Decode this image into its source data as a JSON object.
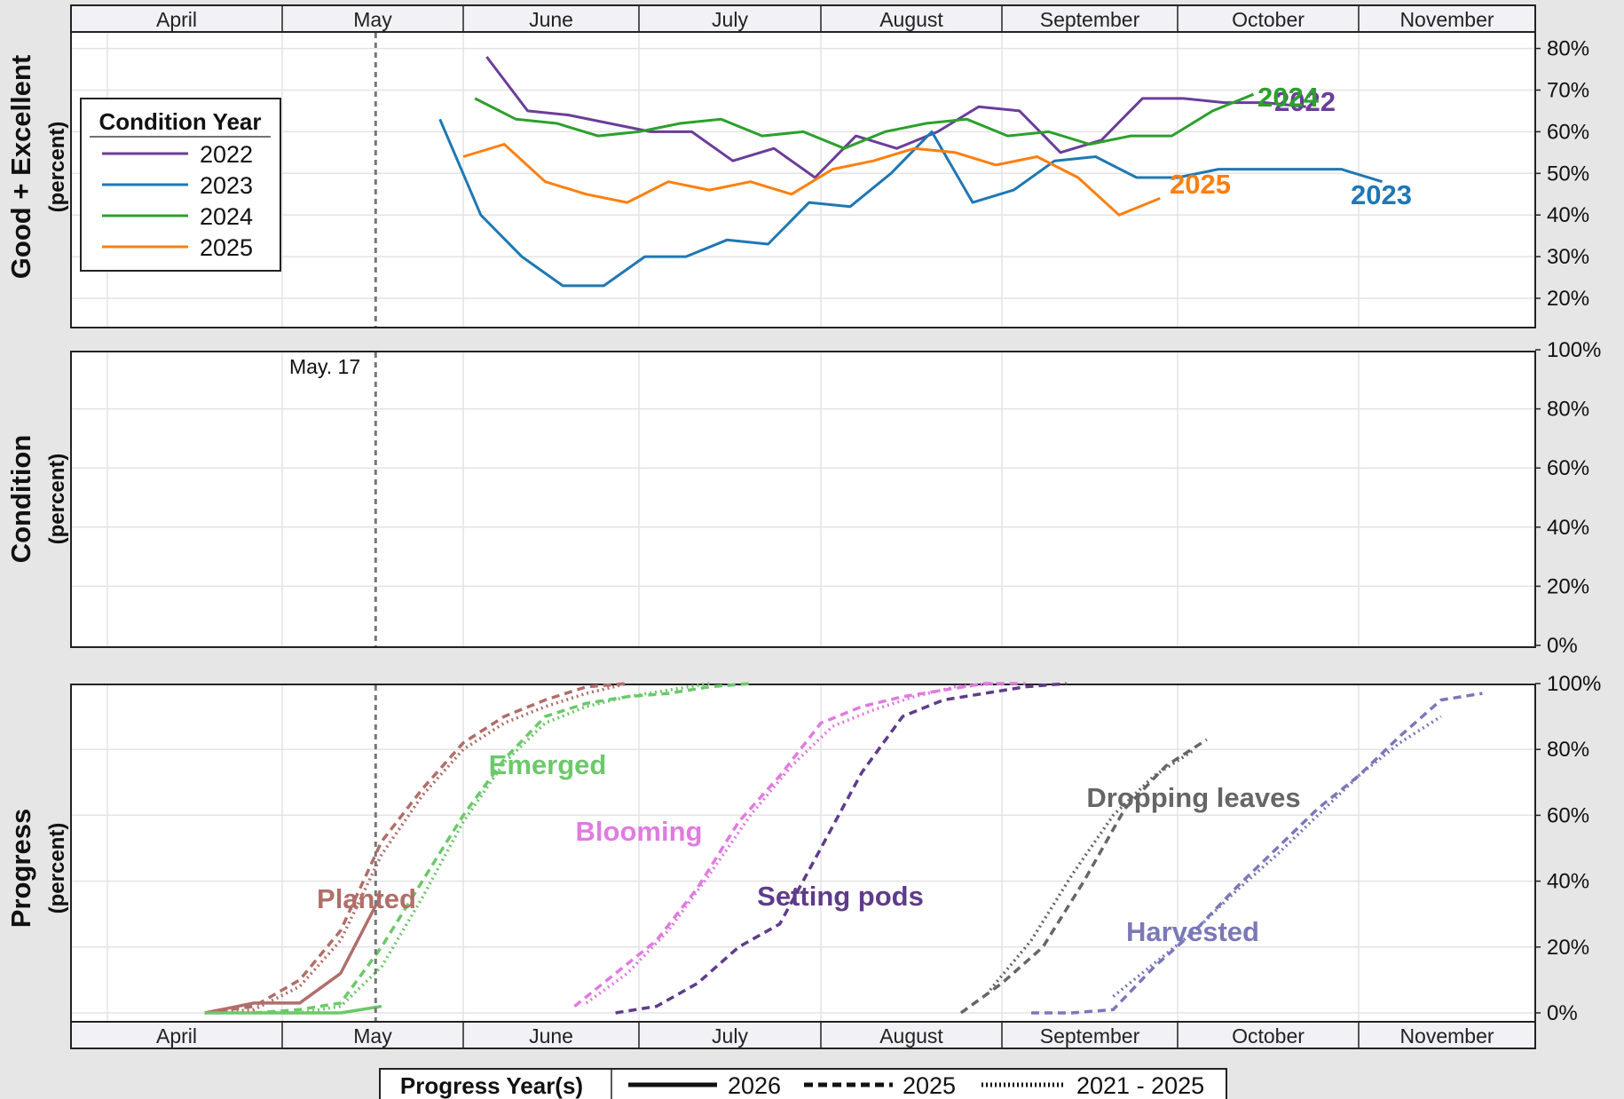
{
  "months": [
    "April",
    "May",
    "June",
    "July",
    "August",
    "September",
    "October",
    "November"
  ],
  "marker": {
    "label": "May. 17"
  },
  "panels": {
    "top": {
      "ylabel": "Good + Excellent",
      "ysub": "(percent)"
    },
    "middle": {
      "ylabel": "Condition",
      "ysub": "(percent)"
    },
    "bottom": {
      "ylabel": "Progress",
      "ysub": "(percent)"
    }
  },
  "legend_condition": {
    "title": "Condition Year",
    "items": [
      {
        "label": "2022",
        "color": "#6a3d9a"
      },
      {
        "label": "2023",
        "color": "#1f77b4"
      },
      {
        "label": "2024",
        "color": "#2ca02c"
      },
      {
        "label": "2025",
        "color": "#ff7f0e"
      }
    ]
  },
  "legend_progress": {
    "title": "Progress Year(s)",
    "items": [
      {
        "label": "2026",
        "style": "solid"
      },
      {
        "label": "2025",
        "style": "dashed"
      },
      {
        "label": "2021 - 2025",
        "style": "dotted"
      }
    ]
  },
  "chart_data": [
    {
      "type": "line",
      "panel": "top",
      "ylim": [
        15,
        85
      ],
      "yticks": [
        20,
        30,
        40,
        50,
        60,
        70,
        80
      ],
      "ytick_labels": [
        "20%",
        "30%",
        "40%",
        "50%",
        "60%",
        "70%",
        "80%"
      ],
      "series": [
        {
          "name": "2022",
          "color": "#6a3d9a",
          "x": [
            "2025-06-05",
            "2025-06-12",
            "2025-06-19",
            "2025-06-26",
            "2025-07-03",
            "2025-07-10",
            "2025-07-17",
            "2025-07-24",
            "2025-07-31",
            "2025-08-07",
            "2025-08-14",
            "2025-08-21",
            "2025-08-28",
            "2025-09-04",
            "2025-09-11",
            "2025-09-18",
            "2025-09-25",
            "2025-10-02",
            "2025-10-09",
            "2025-10-16",
            "2025-10-23"
          ],
          "y": [
            78,
            65,
            64,
            62,
            60,
            60,
            53,
            56,
            49,
            59,
            56,
            60,
            66,
            65,
            55,
            58,
            68,
            68,
            67,
            67,
            66
          ]
        },
        {
          "name": "2023",
          "color": "#1f77b4",
          "x": [
            "2025-05-28",
            "2025-06-04",
            "2025-06-11",
            "2025-06-18",
            "2025-06-25",
            "2025-07-02",
            "2025-07-09",
            "2025-07-16",
            "2025-07-23",
            "2025-07-30",
            "2025-08-06",
            "2025-08-13",
            "2025-08-20",
            "2025-08-27",
            "2025-09-03",
            "2025-09-10",
            "2025-09-17",
            "2025-09-24",
            "2025-10-01",
            "2025-10-08",
            "2025-10-15",
            "2025-10-22",
            "2025-10-29",
            "2025-11-05"
          ],
          "y": [
            63,
            40,
            30,
            23,
            23,
            30,
            30,
            34,
            33,
            43,
            42,
            50,
            60,
            43,
            46,
            53,
            54,
            49,
            49,
            51,
            51,
            51,
            51,
            48
          ]
        },
        {
          "name": "2024",
          "color": "#2ca02c",
          "x": [
            "2025-06-03",
            "2025-06-10",
            "2025-06-17",
            "2025-06-24",
            "2025-07-01",
            "2025-07-08",
            "2025-07-15",
            "2025-07-22",
            "2025-07-29",
            "2025-08-05",
            "2025-08-12",
            "2025-08-19",
            "2025-08-26",
            "2025-09-02",
            "2025-09-09",
            "2025-09-16",
            "2025-09-23",
            "2025-09-30",
            "2025-10-07",
            "2025-10-14"
          ],
          "y": [
            68,
            63,
            62,
            59,
            60,
            62,
            63,
            59,
            60,
            56,
            60,
            62,
            63,
            59,
            60,
            57,
            59,
            59,
            65,
            69
          ]
        },
        {
          "name": "2025",
          "color": "#ff7f0e",
          "x": [
            "2025-06-01",
            "2025-06-08",
            "2025-06-15",
            "2025-06-22",
            "2025-06-29",
            "2025-07-06",
            "2025-07-13",
            "2025-07-20",
            "2025-07-27",
            "2025-08-03",
            "2025-08-10",
            "2025-08-17",
            "2025-08-24",
            "2025-08-31",
            "2025-09-07",
            "2025-09-14",
            "2025-09-21",
            "2025-09-28"
          ],
          "y": [
            54,
            57,
            48,
            45,
            43,
            48,
            46,
            48,
            45,
            51,
            53,
            56,
            55,
            52,
            54,
            49,
            40,
            44
          ]
        }
      ]
    },
    {
      "type": "line",
      "panel": "middle",
      "ylim": [
        0,
        100
      ],
      "yticks": [
        0,
        20,
        40,
        60,
        80,
        100
      ],
      "ytick_labels": [
        "0%",
        "20%",
        "40%",
        "60%",
        "80%",
        "100%"
      ],
      "series": []
    },
    {
      "type": "line",
      "panel": "bottom",
      "ylim": [
        -5,
        100
      ],
      "yticks": [
        0,
        20,
        40,
        60,
        80,
        100
      ],
      "ytick_labels": [
        "0%",
        "20%",
        "40%",
        "60%",
        "80%",
        "100%"
      ],
      "stages": [
        {
          "name": "Planted",
          "color": "#b06e6a",
          "series": [
            {
              "years": "2026",
              "style": "solid",
              "x": [
                "2025-04-20",
                "2025-04-27",
                "2025-05-04",
                "2025-05-11",
                "2025-05-18"
              ],
              "y": [
                0,
                3,
                3,
                12,
                36
              ]
            },
            {
              "years": "2025",
              "style": "dashed",
              "x": [
                "2025-04-20",
                "2025-04-27",
                "2025-05-04",
                "2025-05-11",
                "2025-05-18",
                "2025-05-25",
                "2025-06-01",
                "2025-06-08",
                "2025-06-15",
                "2025-06-22",
                "2025-06-29"
              ],
              "y": [
                0,
                2,
                10,
                25,
                52,
                68,
                82,
                90,
                95,
                99,
                100
              ]
            },
            {
              "years": "2021 - 2025",
              "style": "dotted",
              "x": [
                "2025-04-20",
                "2025-04-27",
                "2025-05-04",
                "2025-05-11",
                "2025-05-18",
                "2025-05-25",
                "2025-06-01",
                "2025-06-08",
                "2025-06-15",
                "2025-06-22",
                "2025-06-29"
              ],
              "y": [
                0,
                1,
                8,
                22,
                48,
                66,
                80,
                88,
                93,
                97,
                100
              ]
            }
          ]
        },
        {
          "name": "Emerged",
          "color": "#6cc86a",
          "series": [
            {
              "years": "2026",
              "style": "solid",
              "x": [
                "2025-04-20",
                "2025-04-27",
                "2025-05-04",
                "2025-05-11",
                "2025-05-18"
              ],
              "y": [
                0,
                0,
                0,
                0,
                2
              ]
            },
            {
              "years": "2025",
              "style": "dashed",
              "x": [
                "2025-04-27",
                "2025-05-04",
                "2025-05-11",
                "2025-05-18",
                "2025-05-25",
                "2025-06-01",
                "2025-06-08",
                "2025-06-15",
                "2025-06-22",
                "2025-06-29",
                "2025-07-06",
                "2025-07-13",
                "2025-07-20"
              ],
              "y": [
                0,
                1,
                3,
                20,
                40,
                60,
                77,
                90,
                94,
                96,
                97,
                99,
                100
              ]
            },
            {
              "years": "2021 - 2025",
              "style": "dotted",
              "x": [
                "2025-04-27",
                "2025-05-04",
                "2025-05-11",
                "2025-05-18",
                "2025-05-25",
                "2025-06-01",
                "2025-06-08",
                "2025-06-15",
                "2025-06-22",
                "2025-06-29",
                "2025-07-06",
                "2025-07-13"
              ],
              "y": [
                0,
                0,
                2,
                14,
                35,
                58,
                76,
                88,
                93,
                96,
                98,
                100
              ]
            }
          ]
        },
        {
          "name": "Blooming",
          "color": "#e07be0",
          "series": [
            {
              "years": "2025",
              "style": "dashed",
              "x": [
                "2025-06-20",
                "2025-06-27",
                "2025-07-04",
                "2025-07-11",
                "2025-07-18",
                "2025-07-25",
                "2025-08-01",
                "2025-08-08",
                "2025-08-15",
                "2025-08-22",
                "2025-08-29",
                "2025-09-05"
              ],
              "y": [
                2,
                12,
                22,
                38,
                58,
                72,
                88,
                93,
                96,
                98,
                100,
                100
              ]
            },
            {
              "years": "2021 - 2025",
              "style": "dotted",
              "x": [
                "2025-06-22",
                "2025-06-29",
                "2025-07-06",
                "2025-07-13",
                "2025-07-20",
                "2025-07-27",
                "2025-08-03",
                "2025-08-10",
                "2025-08-17",
                "2025-08-24",
                "2025-08-31"
              ],
              "y": [
                3,
                12,
                25,
                42,
                60,
                75,
                87,
                92,
                96,
                99,
                100
              ]
            }
          ]
        },
        {
          "name": "Setting pods",
          "color": "#5e3c8a",
          "series": [
            {
              "years": "2025",
              "style": "dashed",
              "x": [
                "2025-06-27",
                "2025-07-04",
                "2025-07-11",
                "2025-07-18",
                "2025-07-25",
                "2025-08-01",
                "2025-08-08",
                "2025-08-15",
                "2025-08-22",
                "2025-08-29",
                "2025-09-05",
                "2025-09-12"
              ],
              "y": [
                0,
                2,
                9,
                20,
                27,
                50,
                73,
                90,
                95,
                97,
                99,
                100
              ]
            }
          ]
        },
        {
          "name": "Dropping leaves",
          "color": "#666666",
          "series": [
            {
              "years": "2025",
              "style": "dashed",
              "x": [
                "2025-08-25",
                "2025-09-01",
                "2025-09-08",
                "2025-09-15",
                "2025-09-22",
                "2025-09-29",
                "2025-10-06"
              ],
              "y": [
                0,
                9,
                20,
                40,
                62,
                75,
                83
              ]
            },
            {
              "years": "2021 - 2025",
              "style": "dotted",
              "x": [
                "2025-08-30",
                "2025-09-06",
                "2025-09-13",
                "2025-09-20",
                "2025-09-27",
                "2025-10-04"
              ],
              "y": [
                7,
                22,
                42,
                60,
                72,
                80
              ]
            }
          ]
        },
        {
          "name": "Harvested",
          "color": "#7a78b8",
          "series": [
            {
              "years": "2025",
              "style": "dashed",
              "x": [
                "2025-09-06",
                "2025-09-13",
                "2025-09-20",
                "2025-09-27",
                "2025-10-04",
                "2025-10-11",
                "2025-10-18",
                "2025-10-25",
                "2025-11-01",
                "2025-11-08",
                "2025-11-15",
                "2025-11-22"
              ],
              "y": [
                0,
                0,
                1,
                14,
                25,
                38,
                50,
                62,
                72,
                84,
                95,
                97
              ]
            },
            {
              "years": "2021 - 2025",
              "style": "dotted",
              "x": [
                "2025-09-20",
                "2025-09-27",
                "2025-10-04",
                "2025-10-11",
                "2025-10-18",
                "2025-10-25",
                "2025-11-01",
                "2025-11-08",
                "2025-11-15"
              ],
              "y": [
                5,
                15,
                25,
                37,
                48,
                60,
                72,
                82,
                90
              ]
            }
          ]
        }
      ]
    }
  ]
}
